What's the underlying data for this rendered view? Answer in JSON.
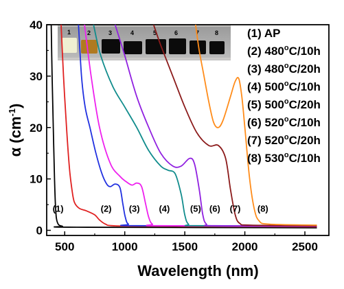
{
  "chart_data": {
    "type": "line",
    "xlabel": "Wavelength (nm)",
    "ylabel_main": "α (cm",
    "ylabel_sup": "-1",
    "ylabel_tail": ")",
    "xlim": [
      350,
      2700
    ],
    "ylim": [
      -1,
      40
    ],
    "xticks": [
      500,
      1000,
      1500,
      2000,
      2500
    ],
    "yticks": [
      0,
      10,
      20,
      30,
      40
    ],
    "legend_position": "top-right",
    "legend": [
      {
        "label": "(1) AP"
      },
      {
        "label": "(2) 480",
        "deg": "o",
        "suffix": "C/10h"
      },
      {
        "label": "(3) 480",
        "deg": "o",
        "suffix": "C/20h"
      },
      {
        "label": "(4) 500",
        "deg": "o",
        "suffix": "C/10h"
      },
      {
        "label": "(5) 500",
        "deg": "o",
        "suffix": "C/20h"
      },
      {
        "label": "(6) 520",
        "deg": "o",
        "suffix": "C/10h"
      },
      {
        "label": "(7) 520",
        "deg": "o",
        "suffix": "C/20h"
      },
      {
        "label": "(8) 530",
        "deg": "o",
        "suffix": "C/10h"
      }
    ],
    "curve_labels": [
      "(1)",
      "(2)",
      "(3)",
      "(4)",
      "(5)",
      "(6)",
      "(7)",
      "(8)"
    ],
    "curve_label_x": [
      445,
      845,
      1080,
      1330,
      1590,
      1750,
      1920,
      2150
    ],
    "curve_label_y": 3.6,
    "series": [
      {
        "color": "#000000",
        "points": [
          [
            388,
            40
          ],
          [
            395,
            30
          ],
          [
            405,
            20
          ],
          [
            415,
            10
          ],
          [
            425,
            4
          ],
          [
            440,
            1.5
          ],
          [
            480,
            0.8
          ],
          [
            600,
            0.6
          ],
          [
            2600,
            0.5
          ]
        ]
      },
      {
        "color": "#e02020",
        "points": [
          [
            470,
            40
          ],
          [
            490,
            30
          ],
          [
            515,
            20
          ],
          [
            540,
            12
          ],
          [
            560,
            8
          ],
          [
            580,
            5.5
          ],
          [
            620,
            4.3
          ],
          [
            680,
            3.8
          ],
          [
            750,
            3
          ],
          [
            790,
            2
          ],
          [
            840,
            1.2
          ],
          [
            900,
            0.9
          ],
          [
            1200,
            0.8
          ],
          [
            2600,
            0.7
          ]
        ]
      },
      {
        "color": "#2030e0",
        "points": [
          [
            615,
            40
          ],
          [
            640,
            30
          ],
          [
            670,
            24
          ],
          [
            710,
            20
          ],
          [
            760,
            15
          ],
          [
            810,
            11
          ],
          [
            850,
            9
          ],
          [
            880,
            8.5
          ],
          [
            920,
            9
          ],
          [
            960,
            8.3
          ],
          [
            985,
            5
          ],
          [
            1005,
            2.5
          ],
          [
            1030,
            1.2
          ],
          [
            1100,
            0.9
          ],
          [
            2600,
            0.8
          ]
        ]
      },
      {
        "color": "#ee20ee",
        "points": [
          [
            665,
            40
          ],
          [
            720,
            30
          ],
          [
            790,
            20
          ],
          [
            880,
            13
          ],
          [
            960,
            10.5
          ],
          [
            1010,
            9.5
          ],
          [
            1060,
            8.8
          ],
          [
            1100,
            9.2
          ],
          [
            1140,
            8.5
          ],
          [
            1175,
            5
          ],
          [
            1200,
            2.5
          ],
          [
            1230,
            1.2
          ],
          [
            1300,
            0.9
          ],
          [
            2600,
            0.8
          ]
        ]
      },
      {
        "color": "#108c8c",
        "points": [
          [
            740,
            40
          ],
          [
            800,
            34
          ],
          [
            900,
            28
          ],
          [
            1000,
            24
          ],
          [
            1100,
            20
          ],
          [
            1200,
            15.5
          ],
          [
            1300,
            12.5
          ],
          [
            1360,
            11.7
          ],
          [
            1420,
            11
          ],
          [
            1470,
            7
          ],
          [
            1500,
            3
          ],
          [
            1530,
            1.2
          ],
          [
            1600,
            0.9
          ],
          [
            2600,
            0.8
          ]
        ]
      },
      {
        "color": "#9020e0",
        "points": [
          [
            920,
            40
          ],
          [
            1000,
            34
          ],
          [
            1100,
            26
          ],
          [
            1200,
            20
          ],
          [
            1300,
            15
          ],
          [
            1400,
            12.5
          ],
          [
            1470,
            12.5
          ],
          [
            1540,
            14
          ],
          [
            1580,
            13
          ],
          [
            1620,
            8
          ],
          [
            1650,
            3
          ],
          [
            1680,
            1.2
          ],
          [
            1750,
            0.9
          ],
          [
            2600,
            0.8
          ]
        ]
      },
      {
        "color": "#8b1a1a",
        "points": [
          [
            1240,
            40
          ],
          [
            1300,
            36
          ],
          [
            1400,
            30
          ],
          [
            1500,
            24
          ],
          [
            1600,
            19
          ],
          [
            1700,
            16.5
          ],
          [
            1780,
            16.5
          ],
          [
            1840,
            14
          ],
          [
            1880,
            8
          ],
          [
            1920,
            3
          ],
          [
            1960,
            1.3
          ],
          [
            2050,
            1
          ],
          [
            2600,
            0.9
          ]
        ]
      },
      {
        "color": "#ff8c1a",
        "points": [
          [
            1590,
            40
          ],
          [
            1620,
            35
          ],
          [
            1660,
            30
          ],
          [
            1700,
            25
          ],
          [
            1740,
            21
          ],
          [
            1780,
            20
          ],
          [
            1820,
            21.5
          ],
          [
            1880,
            26
          ],
          [
            1920,
            29
          ],
          [
            1950,
            29.5
          ],
          [
            1975,
            26
          ],
          [
            2000,
            20
          ],
          [
            2040,
            10
          ],
          [
            2080,
            4
          ],
          [
            2120,
            1.8
          ],
          [
            2200,
            1.2
          ],
          [
            2600,
            1
          ]
        ]
      }
    ]
  }
}
